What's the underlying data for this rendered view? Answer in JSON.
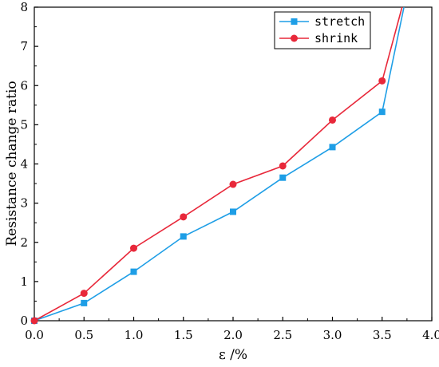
{
  "chart_data": {
    "type": "line",
    "xlabel": "ε /%",
    "ylabel": "Resistance change ratio",
    "xlim": [
      0,
      4
    ],
    "ylim": [
      0,
      8
    ],
    "x_ticks": [
      "0.0",
      "0.5",
      "1.0",
      "1.5",
      "2.0",
      "2.5",
      "3.0",
      "3.5",
      "4.0"
    ],
    "y_ticks": [
      "0",
      "1",
      "2",
      "3",
      "4",
      "5",
      "6",
      "7",
      "8"
    ],
    "grid": false,
    "legend_position": "top-right",
    "series": [
      {
        "name": "stretch",
        "color": "#1e9ee6",
        "marker": "square",
        "x": [
          0,
          0.5,
          1.0,
          1.5,
          2.0,
          2.5,
          3.0,
          3.5,
          3.72
        ],
        "y": [
          0,
          0.45,
          1.25,
          2.15,
          2.78,
          3.65,
          4.43,
          5.33,
          8.0
        ]
      },
      {
        "name": "shrink",
        "color": "#e8283a",
        "marker": "circle",
        "x": [
          0,
          0.5,
          1.0,
          1.5,
          2.0,
          2.5,
          3.0,
          3.5,
          3.7
        ],
        "y": [
          0,
          0.7,
          1.85,
          2.65,
          3.48,
          3.95,
          5.12,
          6.12,
          8.0
        ]
      }
    ]
  }
}
